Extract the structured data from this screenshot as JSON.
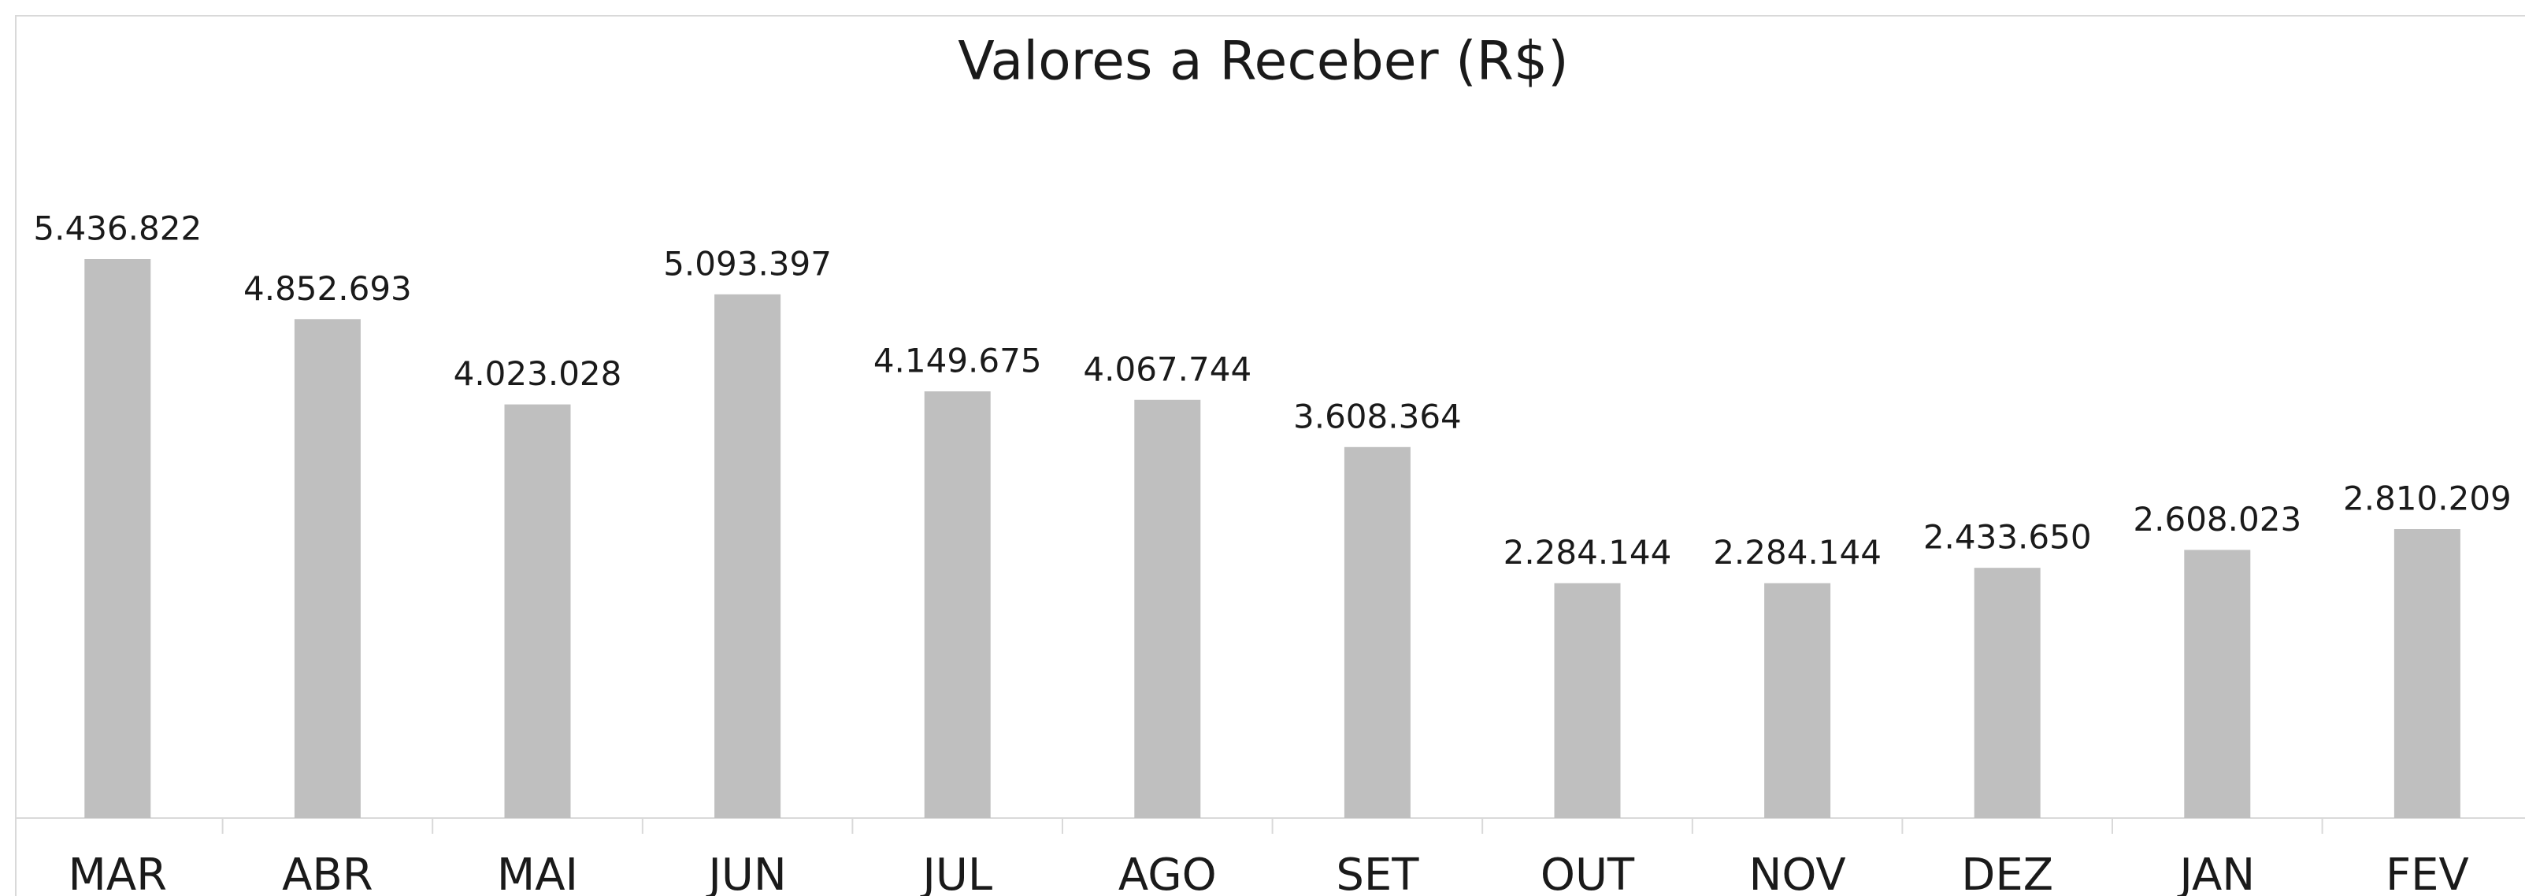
{
  "chart_data": {
    "type": "bar",
    "title": "Valores a Receber (R$)",
    "categories": [
      "MAR",
      "ABR",
      "MAI",
      "JUN",
      "JUL",
      "AGO",
      "SET",
      "OUT",
      "NOV",
      "DEZ",
      "JAN",
      "FEV"
    ],
    "values": [
      5436822,
      4852693,
      4023028,
      5093397,
      4149675,
      4067744,
      3608364,
      2284144,
      2284144,
      2433650,
      2608023,
      2810209
    ],
    "value_labels": [
      "5.436.822",
      "4.852.693",
      "4.023.028",
      "5.093.397",
      "4.149.675",
      "4.067.744",
      "3.608.364",
      "2.284.144",
      "2.284.144",
      "2.433.650",
      "2.608.023",
      "2.810.209"
    ],
    "color": "#bfbfbf"
  }
}
